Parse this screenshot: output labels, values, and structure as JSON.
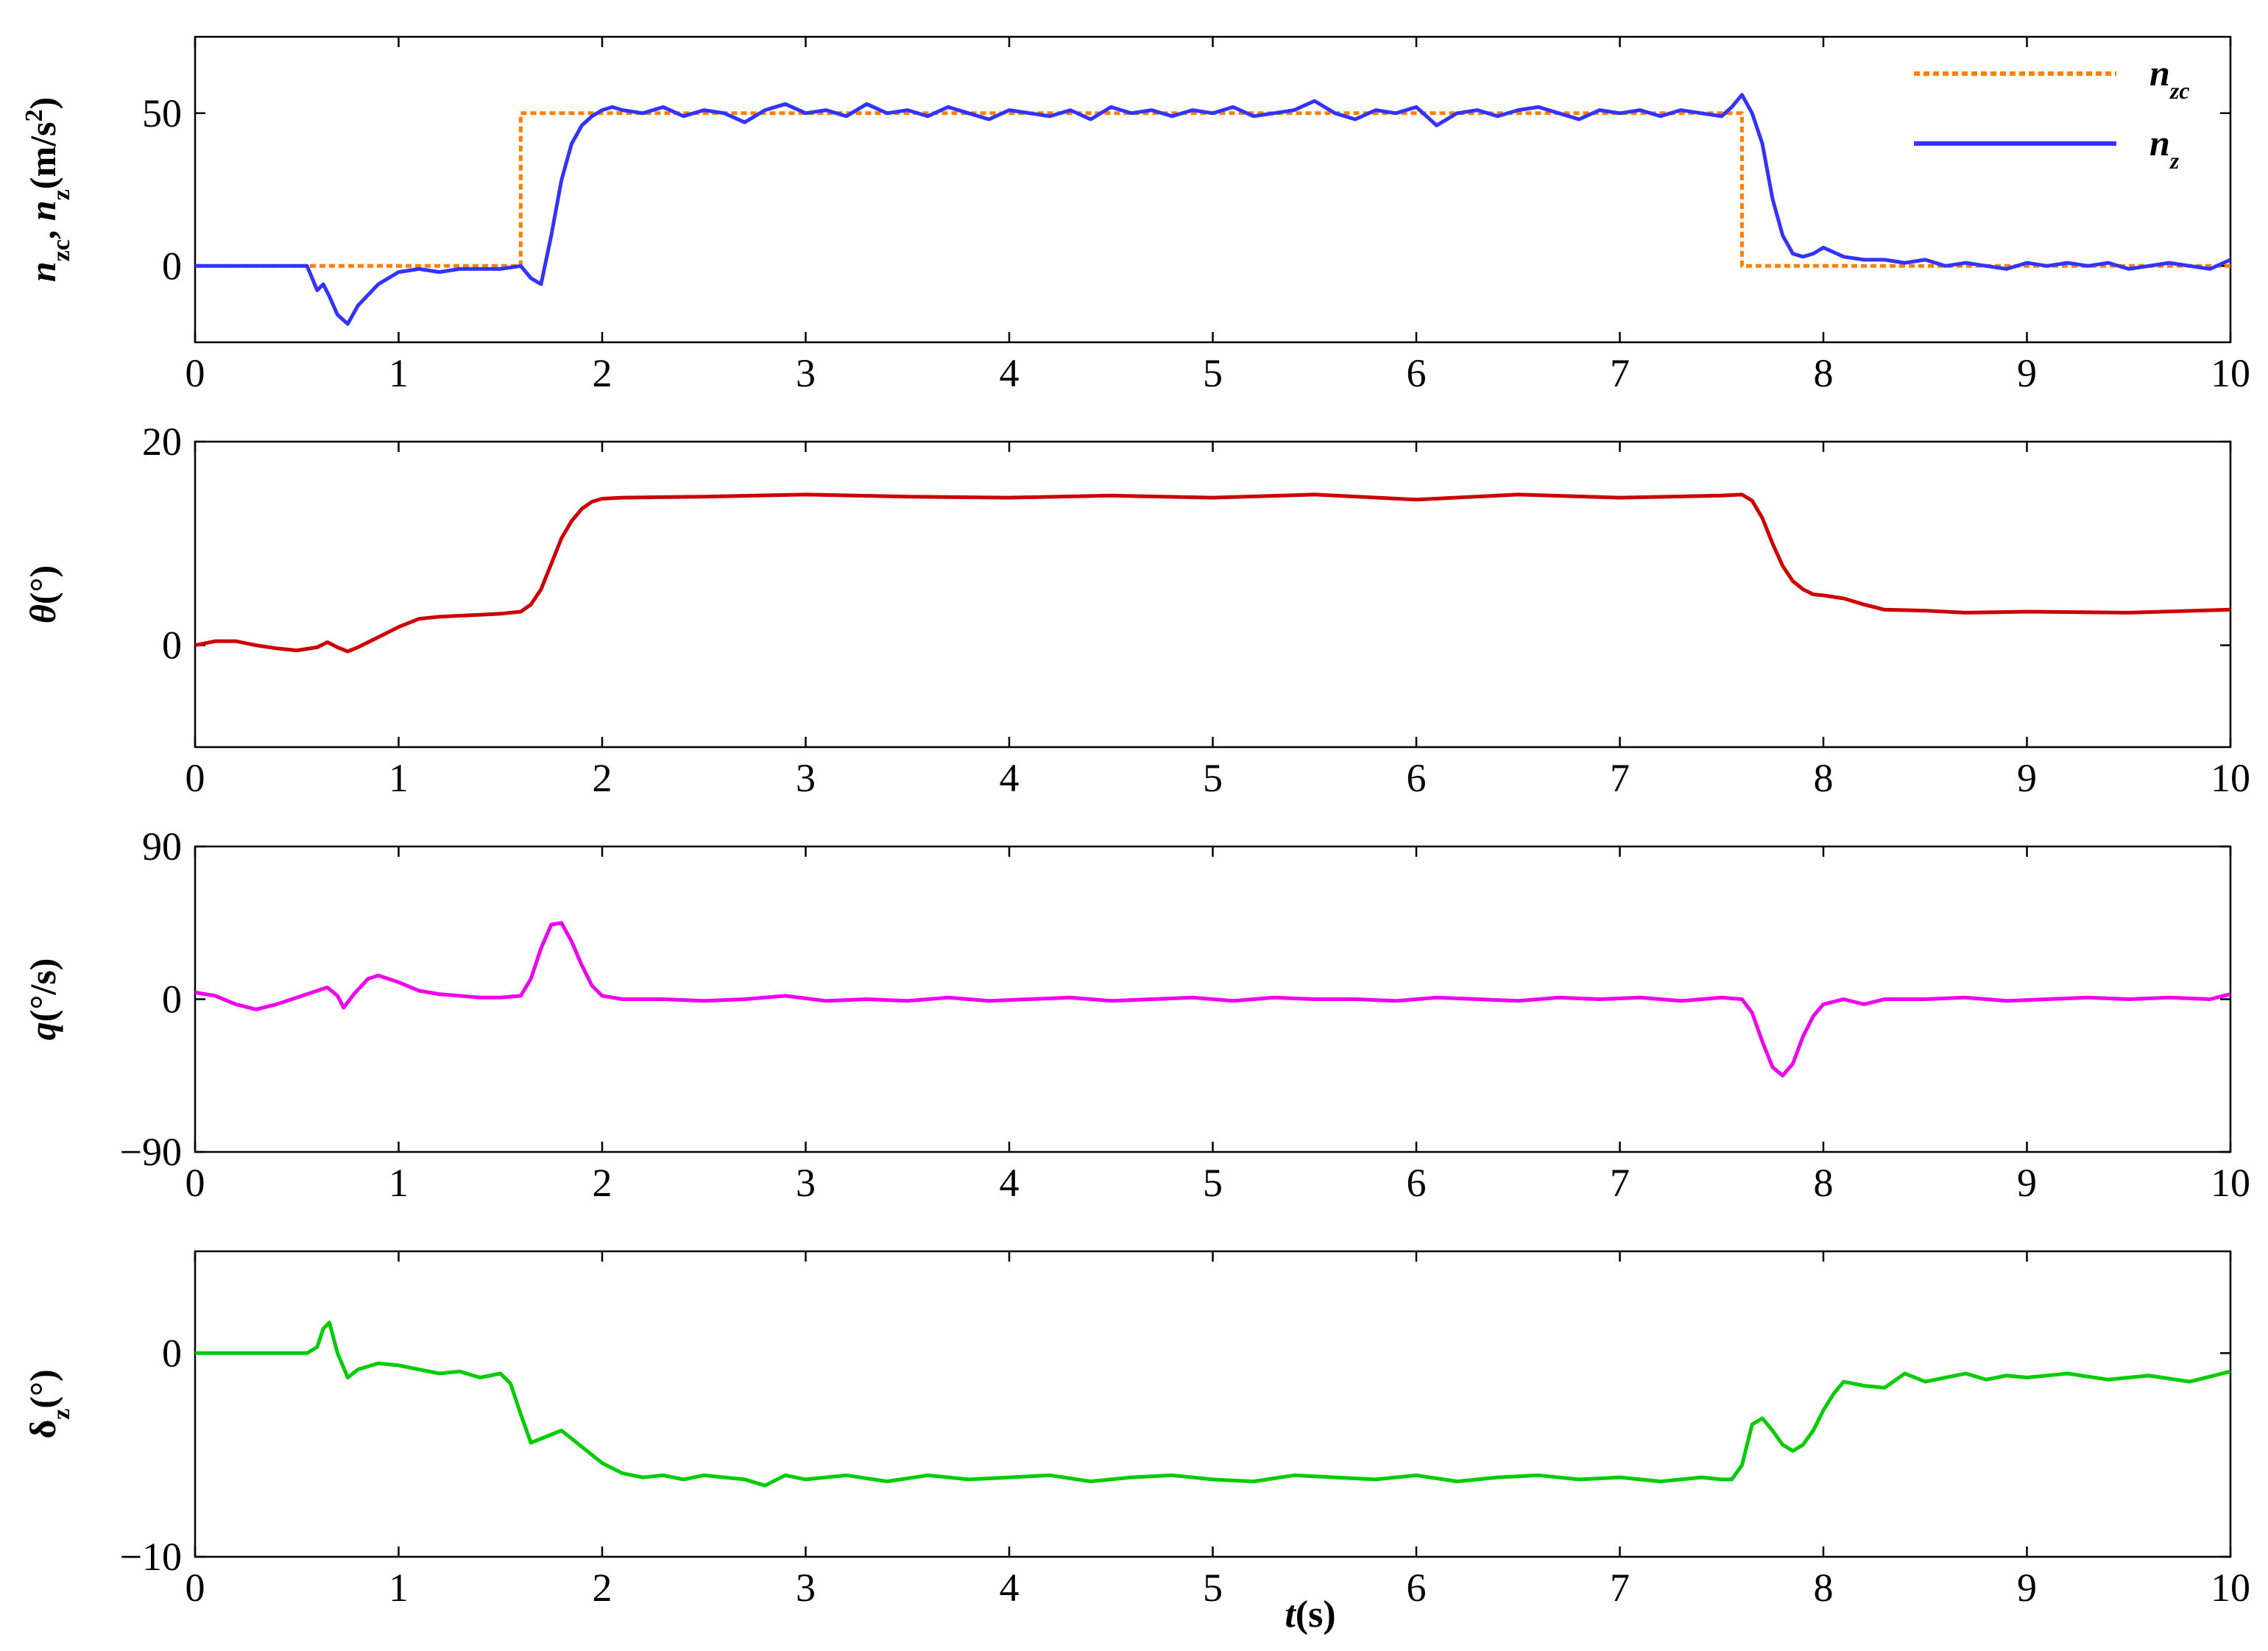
{
  "xlabel": {
    "var": "t",
    "unit": "(s)"
  },
  "chart_data": [
    {
      "type": "line",
      "ylabel": [
        {
          "t": "n",
          "it": true
        },
        {
          "t": "zc",
          "sub": true
        },
        {
          "t": ", "
        },
        {
          "t": "n",
          "it": true
        },
        {
          "t": "z",
          "sub": true
        },
        {
          "t": "(m/s"
        },
        {
          "t": "2",
          "sup": true
        },
        {
          "t": ")"
        }
      ],
      "xlim": [
        0,
        10
      ],
      "ylim": [
        -25,
        75
      ],
      "yticks": [
        {
          "v": 0,
          "label": "0"
        },
        {
          "v": 50,
          "label": "50"
        }
      ],
      "xticks": [
        "0",
        "1",
        "2",
        "3",
        "4",
        "5",
        "6",
        "7",
        "8",
        "9",
        "10"
      ],
      "legend": "top-right",
      "series": [
        {
          "name": "n_zc",
          "legend_label": {
            "main": "n",
            "sub": "zc"
          },
          "color": "#ff8000",
          "dashed": true,
          "x": [
            0,
            1.6,
            1.6,
            7.6,
            7.6,
            10
          ],
          "y": [
            0,
            0,
            50,
            50,
            0,
            0
          ]
        },
        {
          "name": "n_z",
          "legend_label": {
            "main": "n",
            "sub": "z"
          },
          "color": "#3333ff",
          "dashed": false,
          "x": [
            0,
            0.55,
            0.6,
            0.63,
            0.66,
            0.7,
            0.75,
            0.8,
            0.9,
            1.0,
            1.1,
            1.2,
            1.3,
            1.4,
            1.5,
            1.6,
            1.65,
            1.7,
            1.75,
            1.8,
            1.85,
            1.9,
            1.95,
            2.0,
            2.05,
            2.1,
            2.2,
            2.3,
            2.4,
            2.5,
            2.6,
            2.7,
            2.8,
            2.9,
            3.0,
            3.1,
            3.2,
            3.3,
            3.4,
            3.5,
            3.6,
            3.7,
            3.8,
            3.9,
            4.0,
            4.1,
            4.2,
            4.3,
            4.4,
            4.5,
            4.6,
            4.7,
            4.8,
            4.9,
            5.0,
            5.1,
            5.2,
            5.3,
            5.4,
            5.5,
            5.6,
            5.7,
            5.8,
            5.9,
            6.0,
            6.1,
            6.2,
            6.3,
            6.4,
            6.5,
            6.6,
            6.7,
            6.8,
            6.9,
            7.0,
            7.1,
            7.2,
            7.3,
            7.4,
            7.5,
            7.55,
            7.6,
            7.65,
            7.7,
            7.75,
            7.8,
            7.85,
            7.9,
            7.95,
            8.0,
            8.1,
            8.2,
            8.3,
            8.4,
            8.5,
            8.6,
            8.7,
            8.8,
            8.9,
            9.0,
            9.1,
            9.2,
            9.3,
            9.4,
            9.5,
            9.6,
            9.7,
            9.8,
            9.9,
            10.0
          ],
          "y": [
            0,
            0,
            -8,
            -6,
            -10,
            -16,
            -19,
            -13,
            -6,
            -2,
            -1,
            -2,
            -1,
            -1,
            -1,
            0,
            -4,
            -6,
            10,
            28,
            40,
            46,
            49,
            51,
            52,
            51,
            50,
            52,
            49,
            51,
            50,
            47,
            51,
            53,
            50,
            51,
            49,
            53,
            50,
            51,
            49,
            52,
            50,
            48,
            51,
            50,
            49,
            51,
            48,
            52,
            50,
            51,
            49,
            51,
            50,
            52,
            49,
            50,
            51,
            54,
            50,
            48,
            51,
            50,
            52,
            46,
            50,
            51,
            49,
            51,
            52,
            50,
            48,
            51,
            50,
            51,
            49,
            51,
            50,
            49,
            52,
            56,
            50,
            40,
            22,
            10,
            4,
            3,
            4,
            6,
            3,
            2,
            2,
            1,
            2,
            0,
            1,
            0,
            -1,
            1,
            0,
            1,
            0,
            1,
            -1,
            0,
            1,
            0,
            -1,
            2
          ]
        }
      ]
    },
    {
      "type": "line",
      "ylabel": [
        {
          "t": "θ",
          "it": true
        },
        {
          "t": "(°)"
        }
      ],
      "xlim": [
        0,
        10
      ],
      "ylim": [
        -10,
        20
      ],
      "yticks": [
        {
          "v": 0,
          "label": "0"
        },
        {
          "v": 20,
          "label": "20"
        }
      ],
      "xticks": [
        "0",
        "1",
        "2",
        "3",
        "4",
        "5",
        "6",
        "7",
        "8",
        "9",
        "10"
      ],
      "series": [
        {
          "name": "theta",
          "color": "#cc0000",
          "dashed": false,
          "x": [
            0,
            0.1,
            0.2,
            0.3,
            0.4,
            0.5,
            0.6,
            0.65,
            0.7,
            0.75,
            0.8,
            0.9,
            1.0,
            1.1,
            1.2,
            1.3,
            1.4,
            1.5,
            1.6,
            1.65,
            1.7,
            1.75,
            1.8,
            1.85,
            1.9,
            1.95,
            2.0,
            2.1,
            2.5,
            3.0,
            3.5,
            4.0,
            4.5,
            5.0,
            5.5,
            6.0,
            6.5,
            7.0,
            7.5,
            7.6,
            7.65,
            7.7,
            7.75,
            7.8,
            7.85,
            7.9,
            7.95,
            8.0,
            8.1,
            8.2,
            8.3,
            8.5,
            8.7,
            9.0,
            9.5,
            10.0
          ],
          "y": [
            0,
            0.4,
            0.4,
            0,
            -0.3,
            -0.5,
            -0.2,
            0.3,
            -0.2,
            -0.6,
            -0.2,
            0.8,
            1.8,
            2.6,
            2.8,
            2.9,
            3.0,
            3.1,
            3.3,
            4.0,
            5.5,
            8.0,
            10.5,
            12.2,
            13.4,
            14.1,
            14.4,
            14.5,
            14.6,
            14.8,
            14.6,
            14.5,
            14.7,
            14.5,
            14.8,
            14.3,
            14.8,
            14.5,
            14.7,
            14.8,
            14.2,
            12.5,
            10.0,
            7.8,
            6.3,
            5.5,
            5.0,
            4.9,
            4.6,
            4.0,
            3.5,
            3.4,
            3.2,
            3.3,
            3.2,
            3.5
          ]
        }
      ]
    },
    {
      "type": "line",
      "ylabel": [
        {
          "t": "q",
          "it": true
        },
        {
          "t": "(°/s)"
        }
      ],
      "xlim": [
        0,
        10
      ],
      "ylim": [
        -90,
        90
      ],
      "yticks": [
        {
          "v": -90,
          "label": "−90"
        },
        {
          "v": 0,
          "label": "0"
        },
        {
          "v": 90,
          "label": "90"
        }
      ],
      "xticks": [
        "0",
        "1",
        "2",
        "3",
        "4",
        "5",
        "6",
        "7",
        "8",
        "9",
        "10"
      ],
      "series": [
        {
          "name": "q",
          "color": "#ee00ee",
          "dashed": false,
          "x": [
            0,
            0.1,
            0.2,
            0.3,
            0.4,
            0.5,
            0.6,
            0.65,
            0.7,
            0.73,
            0.78,
            0.85,
            0.9,
            1.0,
            1.1,
            1.2,
            1.3,
            1.4,
            1.5,
            1.6,
            1.65,
            1.7,
            1.75,
            1.8,
            1.85,
            1.9,
            1.95,
            2.0,
            2.1,
            2.3,
            2.5,
            2.7,
            2.9,
            3.1,
            3.3,
            3.5,
            3.7,
            3.9,
            4.1,
            4.3,
            4.5,
            4.7,
            4.9,
            5.1,
            5.3,
            5.5,
            5.7,
            5.9,
            6.1,
            6.3,
            6.5,
            6.7,
            6.9,
            7.1,
            7.3,
            7.5,
            7.6,
            7.65,
            7.7,
            7.75,
            7.8,
            7.85,
            7.9,
            7.95,
            8.0,
            8.1,
            8.2,
            8.3,
            8.5,
            8.7,
            8.9,
            9.1,
            9.3,
            9.5,
            9.7,
            9.9,
            10.0
          ],
          "y": [
            4,
            2,
            -3,
            -6,
            -3,
            1,
            5,
            7,
            2,
            -5,
            3,
            12,
            14,
            10,
            5,
            3,
            2,
            1,
            1,
            2,
            12,
            30,
            44,
            45,
            34,
            20,
            8,
            2,
            0,
            0,
            -1,
            0,
            2,
            -1,
            0,
            -1,
            1,
            -1,
            0,
            1,
            -1,
            0,
            1,
            -1,
            1,
            0,
            0,
            -1,
            1,
            0,
            -1,
            1,
            0,
            1,
            -1,
            1,
            0,
            -8,
            -25,
            -40,
            -45,
            -38,
            -22,
            -10,
            -3,
            0,
            -3,
            0,
            0,
            1,
            -1,
            0,
            1,
            0,
            1,
            0,
            3
          ]
        }
      ]
    },
    {
      "type": "line",
      "ylabel": [
        {
          "t": "δ"
        },
        {
          "t": "z",
          "sub": true
        },
        {
          "t": "(°)"
        }
      ],
      "xlim": [
        0,
        10
      ],
      "ylim": [
        -10,
        5
      ],
      "yticks": [
        {
          "v": -10,
          "label": "−10"
        },
        {
          "v": 0,
          "label": "0"
        }
      ],
      "xticks": [
        "0",
        "1",
        "2",
        "3",
        "4",
        "5",
        "6",
        "7",
        "8",
        "9",
        "10"
      ],
      "series": [
        {
          "name": "delta_z",
          "color": "#00cc00",
          "dashed": false,
          "x": [
            0,
            0.3,
            0.55,
            0.6,
            0.63,
            0.66,
            0.7,
            0.75,
            0.8,
            0.9,
            1.0,
            1.1,
            1.2,
            1.3,
            1.4,
            1.5,
            1.55,
            1.6,
            1.65,
            1.7,
            1.75,
            1.8,
            1.9,
            2.0,
            2.1,
            2.2,
            2.3,
            2.4,
            2.5,
            2.6,
            2.7,
            2.8,
            2.9,
            3.0,
            3.2,
            3.4,
            3.6,
            3.8,
            4.0,
            4.2,
            4.4,
            4.6,
            4.8,
            5.0,
            5.2,
            5.4,
            5.6,
            5.8,
            6.0,
            6.2,
            6.4,
            6.6,
            6.8,
            7.0,
            7.2,
            7.4,
            7.5,
            7.55,
            7.6,
            7.65,
            7.7,
            7.75,
            7.8,
            7.85,
            7.9,
            7.95,
            8.0,
            8.05,
            8.1,
            8.2,
            8.3,
            8.4,
            8.5,
            8.6,
            8.7,
            8.8,
            8.9,
            9.0,
            9.2,
            9.4,
            9.6,
            9.8,
            10.0
          ],
          "y": [
            0,
            0,
            0,
            0.3,
            1.2,
            1.5,
            0,
            -1.2,
            -0.8,
            -0.5,
            -0.6,
            -0.8,
            -1.0,
            -0.9,
            -1.2,
            -1.0,
            -1.5,
            -3.0,
            -4.4,
            -4.2,
            -4.0,
            -3.8,
            -4.6,
            -5.4,
            -5.9,
            -6.1,
            -6.0,
            -6.2,
            -6.0,
            -6.1,
            -6.2,
            -6.5,
            -6.0,
            -6.2,
            -6.0,
            -6.3,
            -6.0,
            -6.2,
            -6.1,
            -6.0,
            -6.3,
            -6.1,
            -6.0,
            -6.2,
            -6.3,
            -6.0,
            -6.1,
            -6.2,
            -6.0,
            -6.3,
            -6.1,
            -6.0,
            -6.2,
            -6.1,
            -6.3,
            -6.1,
            -6.2,
            -6.2,
            -5.5,
            -3.5,
            -3.2,
            -3.8,
            -4.5,
            -4.8,
            -4.5,
            -3.8,
            -2.8,
            -2.0,
            -1.4,
            -1.6,
            -1.7,
            -1.0,
            -1.4,
            -1.2,
            -1.0,
            -1.3,
            -1.1,
            -1.2,
            -1.0,
            -1.3,
            -1.1,
            -1.4,
            -0.9
          ]
        }
      ]
    }
  ]
}
